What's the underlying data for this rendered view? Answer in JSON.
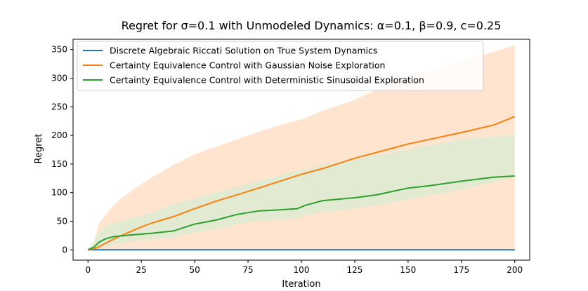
{
  "chart_data": {
    "type": "line",
    "title": "Regret for σ=0.1 with Unmodeled Dynamics: α=0.1, β=0.9, c=0.25",
    "xlabel": "Iteration",
    "ylabel": "Regret",
    "xlim": [
      -7,
      207
    ],
    "ylim": [
      -18,
      368
    ],
    "xticks": [
      0,
      25,
      50,
      75,
      100,
      125,
      150,
      175,
      200
    ],
    "yticks": [
      0,
      50,
      100,
      150,
      200,
      250,
      300,
      350
    ],
    "legend_position": "upper-left",
    "grid": false,
    "series": [
      {
        "name": "Discrete Algebraic Riccati Solution on True System Dynamics",
        "color": "#1f77b4",
        "x": [
          0,
          200
        ],
        "y": [
          0,
          0
        ]
      },
      {
        "name": "Certainty Equivalence Control with Gaussian Noise Exploration",
        "color": "#ff7f0e",
        "band_color": "#ffdcc0",
        "x": [
          0,
          3,
          5,
          10,
          15,
          20,
          25,
          30,
          40,
          50,
          60,
          75,
          90,
          100,
          110,
          125,
          140,
          150,
          160,
          175,
          190,
          200
        ],
        "y": [
          0,
          2,
          5,
          15,
          24,
          32,
          40,
          47,
          58,
          72,
          85,
          102,
          120,
          132,
          142,
          160,
          175,
          185,
          193,
          205,
          218,
          233
        ],
        "upper": [
          0,
          15,
          45,
          70,
          88,
          102,
          115,
          127,
          148,
          167,
          180,
          200,
          218,
          228,
          243,
          262,
          288,
          300,
          313,
          330,
          346,
          357
        ],
        "lower": [
          0,
          0,
          0,
          0,
          0,
          0,
          0,
          0,
          0,
          0,
          0,
          0,
          0,
          0,
          0,
          0,
          0,
          0,
          0,
          0,
          0,
          0
        ]
      },
      {
        "name": "Certainty Equivalence Control with Deterministic Sinusoidal Exploration",
        "color": "#2ca02c",
        "band_color": "#d8ebd2",
        "x": [
          0,
          3,
          5,
          8,
          12,
          20,
          30,
          40,
          50,
          60,
          70,
          80,
          90,
          98,
          102,
          110,
          125,
          135,
          150,
          160,
          175,
          190,
          200
        ],
        "y": [
          0,
          5,
          13,
          19,
          23,
          26,
          29,
          33,
          45,
          52,
          62,
          68,
          70,
          72,
          78,
          86,
          91,
          96,
          108,
          112,
          120,
          127,
          129
        ],
        "upper": [
          0,
          15,
          30,
          40,
          47,
          55,
          65,
          80,
          90,
          100,
          110,
          120,
          130,
          138,
          140,
          148,
          158,
          165,
          175,
          183,
          193,
          198,
          202
        ],
        "lower": [
          0,
          0,
          2,
          5,
          10,
          14,
          18,
          22,
          30,
          36,
          44,
          50,
          52,
          55,
          60,
          66,
          72,
          78,
          88,
          95,
          105,
          118,
          130
        ]
      }
    ]
  }
}
